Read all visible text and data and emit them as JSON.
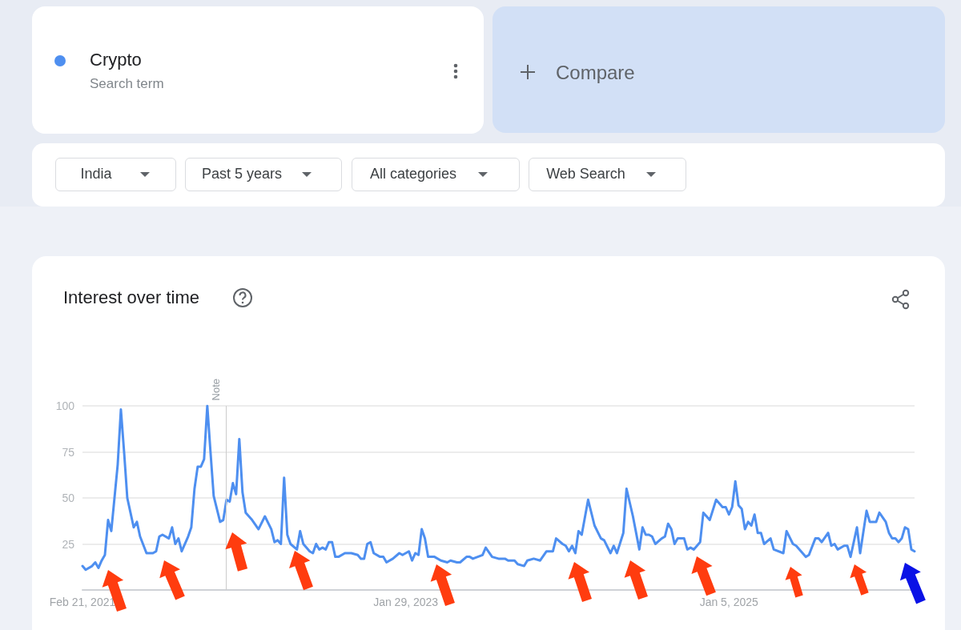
{
  "chart_data": {
    "type": "line",
    "title": "Interest over time",
    "annotations": [
      "Search term",
      "Compare",
      "India",
      "Past 5 years",
      "All categories",
      "Web Search"
    ],
    "x": [
      "2021-02-21",
      "2021-02-28",
      "2021-03-14",
      "2021-03-21",
      "2021-03-28",
      "2021-04-04",
      "2021-04-11",
      "2021-04-18",
      "2021-04-25",
      "2021-05-09",
      "2021-05-16",
      "2021-05-23",
      "2021-05-30",
      "2021-06-06",
      "2021-06-13",
      "2021-06-20",
      "2021-06-27",
      "2021-07-11",
      "2021-07-25",
      "2021-08-01",
      "2021-08-08",
      "2021-08-15",
      "2021-08-29",
      "2021-09-05",
      "2021-09-12",
      "2021-09-19",
      "2021-09-26",
      "2021-10-10",
      "2021-10-17",
      "2021-10-24",
      "2021-10-31",
      "2021-11-07",
      "2021-11-14",
      "2021-11-21",
      "2021-11-28",
      "2021-12-05",
      "2021-12-19",
      "2021-12-26",
      "2022-01-02",
      "2022-01-09",
      "2022-01-16",
      "2022-01-23",
      "2022-01-30",
      "2022-02-06",
      "2022-02-13",
      "2022-02-27",
      "2022-03-13",
      "2022-03-27",
      "2022-04-10",
      "2022-04-17",
      "2022-04-24",
      "2022-05-01",
      "2022-05-08",
      "2022-05-15",
      "2022-05-22",
      "2022-06-05",
      "2022-06-12",
      "2022-06-19",
      "2022-07-03",
      "2022-07-10",
      "2022-07-17",
      "2022-07-24",
      "2022-07-31",
      "2022-08-07",
      "2022-08-14",
      "2022-08-21",
      "2022-08-28",
      "2022-09-04",
      "2022-09-18",
      "2022-09-25",
      "2022-10-02",
      "2022-10-16",
      "2022-10-23",
      "2022-10-30",
      "2022-11-06",
      "2022-11-13",
      "2022-11-20",
      "2022-12-04",
      "2022-12-11",
      "2022-12-18",
      "2023-01-01",
      "2023-01-15",
      "2023-01-22",
      "2023-02-05",
      "2023-02-12",
      "2023-02-19",
      "2023-02-26",
      "2023-03-05",
      "2023-03-12",
      "2023-03-19",
      "2023-04-02",
      "2023-04-16",
      "2023-04-30",
      "2023-05-07",
      "2023-05-21",
      "2023-05-28",
      "2023-06-11",
      "2023-06-18",
      "2023-06-25",
      "2023-07-16",
      "2023-07-23",
      "2023-08-06",
      "2023-08-20",
      "2023-09-03",
      "2023-09-10",
      "2023-09-24",
      "2023-10-01",
      "2023-10-15",
      "2023-10-22",
      "2023-11-05",
      "2023-11-19",
      "2023-12-03",
      "2023-12-17",
      "2023-12-24",
      "2024-01-07",
      "2024-01-14",
      "2024-01-21",
      "2024-01-28",
      "2024-02-04",
      "2024-02-11",
      "2024-02-18",
      "2024-03-03",
      "2024-03-17",
      "2024-03-31",
      "2024-04-07",
      "2024-04-21",
      "2024-04-28",
      "2024-05-05",
      "2024-05-19",
      "2024-05-26",
      "2024-06-09",
      "2024-06-23",
      "2024-06-30",
      "2024-07-07",
      "2024-07-14",
      "2024-07-21",
      "2024-07-28",
      "2024-08-11",
      "2024-08-18",
      "2024-08-25",
      "2024-09-01",
      "2024-09-08",
      "2024-09-15",
      "2024-09-29",
      "2024-10-06",
      "2024-10-13",
      "2024-10-20",
      "2024-11-03",
      "2024-11-10",
      "2024-11-24",
      "2024-12-08",
      "2024-12-22",
      "2024-12-29",
      "2025-01-05",
      "2025-01-12",
      "2025-01-19",
      "2025-01-26",
      "2025-02-02",
      "2025-02-09",
      "2025-02-16",
      "2025-02-23",
      "2025-03-02",
      "2025-03-09",
      "2025-03-16",
      "2025-03-23",
      "2025-04-06",
      "2025-04-13",
      "2025-05-04",
      "2025-05-11",
      "2025-05-25",
      "2025-06-01",
      "2025-06-22",
      "2025-06-29",
      "2025-07-13",
      "2025-07-20",
      "2025-07-27",
      "2025-08-10",
      "2025-08-17",
      "2025-08-24",
      "2025-08-31",
      "2025-09-14",
      "2025-09-21",
      "2025-09-28",
      "2025-10-12",
      "2025-10-19",
      "2025-11-02",
      "2025-11-09",
      "2025-11-23",
      "2025-11-30",
      "2025-12-14",
      "2025-12-21",
      "2025-12-28",
      "2026-01-04",
      "2026-01-11",
      "2026-01-18",
      "2026-01-25",
      "2026-02-01",
      "2026-02-08",
      "2026-02-15"
    ],
    "series": [
      {
        "name": "Crypto",
        "color": "#4e8ff0",
        "values": [
          13,
          11,
          13,
          15,
          12,
          16,
          19,
          38,
          32,
          68,
          98,
          75,
          50,
          42,
          34,
          37,
          29,
          20,
          20,
          21,
          29,
          30,
          28,
          34,
          25,
          28,
          21,
          29,
          34,
          55,
          67,
          67,
          71,
          100,
          75,
          51,
          37,
          38,
          49,
          48,
          58,
          52,
          82,
          53,
          42,
          38,
          33,
          40,
          33,
          26,
          27,
          25,
          61,
          30,
          25,
          22,
          32,
          25,
          21,
          20,
          25,
          22,
          23,
          22,
          26,
          26,
          18,
          18,
          20,
          20,
          20,
          19,
          17,
          17,
          25,
          26,
          20,
          18,
          18,
          15,
          17,
          20,
          19,
          21,
          16,
          20,
          19,
          33,
          28,
          18,
          18,
          16,
          15,
          16,
          15,
          15,
          18,
          18,
          17,
          19,
          23,
          18,
          17,
          17,
          16,
          16,
          14,
          13,
          16,
          17,
          16,
          21,
          21,
          28,
          25,
          24,
          21,
          24,
          20,
          32,
          30,
          49,
          35,
          28,
          27,
          20,
          24,
          20,
          31,
          55,
          40,
          22,
          34,
          30,
          30,
          29,
          25,
          28,
          29,
          36,
          33,
          25,
          28,
          28,
          22,
          23,
          22,
          26,
          42,
          38,
          49,
          45,
          45,
          41,
          45,
          59,
          46,
          44,
          33,
          37,
          35,
          41,
          31,
          31,
          25,
          28,
          22,
          20,
          32,
          25,
          24,
          18,
          19,
          28,
          28,
          26,
          31,
          24,
          25,
          22,
          24,
          24,
          18,
          34,
          20,
          43,
          37,
          37,
          42,
          37,
          31,
          28,
          28,
          26,
          28,
          34,
          33,
          22,
          21
        ]
      }
    ],
    "xlim": [
      "2021-02-21",
      "2026-02-15"
    ],
    "xticks": [
      {
        "value": "2021-02-21",
        "label": "Feb 21, 2021"
      },
      {
        "value": "2023-01-29",
        "label": "Jan 29, 2023"
      },
      {
        "value": "2025-01-05",
        "label": "Jan 5, 2025"
      }
    ],
    "ylim": [
      0,
      100
    ],
    "yticks": [
      25,
      50,
      75,
      100
    ],
    "ref_lines": [
      {
        "axis": "x",
        "value": "2022-01-01",
        "label": "Note",
        "color": "#cccccc"
      }
    ],
    "grid": "y",
    "marker": "none",
    "line_style": "solid"
  }
}
